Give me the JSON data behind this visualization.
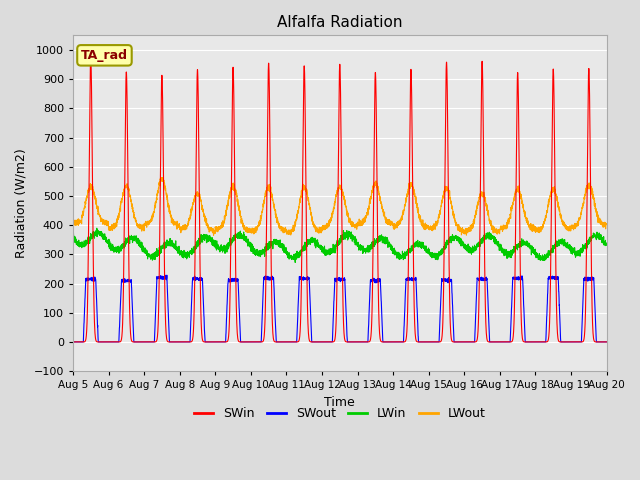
{
  "title": "Alfalfa Radiation",
  "xlabel": "Time",
  "ylabel": "Radiation (W/m2)",
  "ylim": [
    -100,
    1050
  ],
  "yticks": [
    -100,
    0,
    100,
    200,
    300,
    400,
    500,
    600,
    700,
    800,
    900,
    1000
  ],
  "n_days": 15,
  "annotation_text": "TA_rad",
  "series": {
    "SWin": {
      "color": "#FF0000"
    },
    "SWout": {
      "color": "#0000FF"
    },
    "LWin": {
      "color": "#00CC00"
    },
    "LWout": {
      "color": "#FFA500"
    }
  },
  "background_color": "#E8E8E8",
  "grid_color": "#FFFFFF",
  "fig_bg": "#DCDCDC",
  "legend_items": [
    "SWin",
    "SWout",
    "LWin",
    "LWout"
  ],
  "legend_colors": [
    "#FF0000",
    "#0000FF",
    "#00CC00",
    "#FFA500"
  ]
}
